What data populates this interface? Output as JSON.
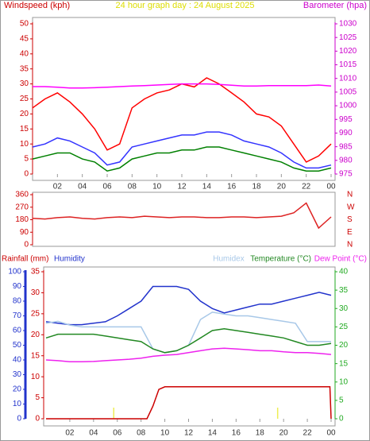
{
  "chart_data": [
    {
      "type": "line",
      "title": "24 hour graph day : 24 August 2025",
      "y_label": "Windspeed (kph)",
      "y2_label": "Barometer (hpa)",
      "x": [
        0,
        1,
        2,
        3,
        4,
        5,
        6,
        7,
        8,
        9,
        10,
        11,
        12,
        13,
        14,
        15,
        16,
        17,
        18,
        19,
        20,
        21,
        22,
        23,
        24
      ],
      "xlim": [
        0,
        24
      ],
      "xticks": [
        {
          "value": 2,
          "label": "02"
        },
        {
          "value": 4,
          "label": "04"
        },
        {
          "value": 6,
          "label": "06"
        },
        {
          "value": 8,
          "label": "08"
        },
        10,
        12,
        14,
        16,
        18,
        20,
        22,
        {
          "value": 24,
          "label": "00"
        }
      ],
      "ylim": [
        0,
        50
      ],
      "yticks": [
        0,
        5,
        10,
        15,
        20,
        25,
        30,
        35,
        40,
        45,
        50
      ],
      "y2lim": [
        975,
        1030
      ],
      "y2ticks": [
        975,
        980,
        985,
        990,
        995,
        1000,
        1005,
        1010,
        1015,
        1020,
        1025,
        1030
      ],
      "series": [
        {
          "color": "#ff0000",
          "values": [
            22,
            25,
            27,
            24,
            20,
            15,
            8,
            10,
            22,
            25,
            27,
            28,
            30,
            29,
            32,
            30,
            27,
            24,
            20,
            19,
            16,
            10,
            4,
            6,
            10
          ]
        },
        {
          "color": "#008000",
          "values": [
            5,
            6,
            7,
            7,
            5,
            4,
            1,
            2,
            5,
            6,
            7,
            7,
            8,
            8,
            9,
            9,
            8,
            7,
            6,
            5,
            4,
            2,
            1,
            1,
            2
          ]
        },
        {
          "color": "#3333ff",
          "values": [
            9,
            10,
            12,
            11,
            9,
            7,
            3,
            4,
            9,
            10,
            11,
            12,
            13,
            13,
            14,
            14,
            13,
            11,
            10,
            9,
            7,
            4,
            2,
            2,
            3
          ]
        },
        {
          "color": "#ff00ff",
          "axis": "y2",
          "values": [
            1007,
            1007,
            1006.8,
            1006.5,
            1006.5,
            1006.6,
            1006.8,
            1007,
            1007.2,
            1007.4,
            1007.6,
            1007.8,
            1008,
            1008,
            1008,
            1007.8,
            1007.5,
            1007.2,
            1007.2,
            1007.4,
            1007.4,
            1007.4,
            1007.4,
            1007.6,
            1007.2
          ]
        }
      ]
    },
    {
      "type": "line",
      "x": [
        0,
        1,
        2,
        3,
        4,
        5,
        6,
        7,
        8,
        9,
        10,
        11,
        12,
        13,
        14,
        15,
        16,
        17,
        18,
        19,
        20,
        21,
        22,
        23,
        24
      ],
      "xlim": [
        0,
        24
      ],
      "ylim": [
        0,
        360
      ],
      "yticks": [
        0,
        90,
        180,
        270,
        360
      ],
      "y2ticks": [
        {
          "value": 0,
          "label": "N"
        },
        {
          "value": 90,
          "label": "E"
        },
        {
          "value": 180,
          "label": "S"
        },
        {
          "value": 270,
          "label": "W"
        },
        {
          "value": 360,
          "label": "N"
        }
      ],
      "series": [
        {
          "color": "#dd2222",
          "values": [
            190,
            185,
            195,
            200,
            190,
            185,
            195,
            200,
            195,
            205,
            200,
            195,
            200,
            200,
            195,
            195,
            200,
            200,
            195,
            200,
            205,
            230,
            300,
            120,
            200
          ]
        }
      ]
    },
    {
      "type": "line",
      "x": [
        0,
        1,
        2,
        3,
        4,
        5,
        6,
        7,
        8,
        9,
        10,
        11,
        12,
        13,
        14,
        15,
        16,
        17,
        18,
        19,
        20,
        21,
        22,
        23,
        24
      ],
      "xlim": [
        0,
        24
      ],
      "xticks": [
        {
          "value": 2,
          "label": "02"
        },
        {
          "value": 4,
          "label": "04"
        },
        {
          "value": 6,
          "label": "06"
        },
        {
          "value": 8,
          "label": "08"
        },
        10,
        12,
        14,
        16,
        18,
        20,
        22,
        {
          "value": 24,
          "label": "00"
        }
      ],
      "ylim": [
        0,
        100
      ],
      "yticks": [
        0,
        10,
        20,
        30,
        40,
        50,
        60,
        70,
        80,
        90,
        100
      ],
      "y2lim": [
        0,
        35
      ],
      "y2ticks": [
        0,
        5,
        10,
        15,
        20,
        25,
        30,
        35
      ],
      "y3lim": [
        0,
        40
      ],
      "y3ticks": [
        0,
        5,
        10,
        15,
        20,
        25,
        30,
        35,
        40
      ],
      "sun_markers": [
        5.7,
        19.5
      ],
      "series": [
        {
          "name": "Rainfall (mm)",
          "color": "#cc0000",
          "axis": "y2",
          "x": [
            0,
            8.5,
            9,
            9.5,
            10,
            23.9,
            24
          ],
          "values": [
            0,
            0,
            3,
            7,
            7.6,
            7.6,
            0
          ]
        },
        {
          "name": "Humidity",
          "color": "#2233cc",
          "values": [
            66,
            65,
            64,
            64,
            65,
            66,
            70,
            75,
            80,
            90,
            90,
            90,
            88,
            80,
            75,
            72,
            74,
            76,
            78,
            78,
            80,
            82,
            84,
            86,
            84
          ]
        },
        {
          "name": "Humidex",
          "color": "#a8c8e8",
          "axis": "y3",
          "values": [
            26,
            26.5,
            25.5,
            25,
            25,
            25,
            25,
            25,
            25,
            19,
            18,
            18.5,
            20,
            27,
            29,
            28.5,
            28,
            28,
            27.5,
            27,
            26.5,
            26,
            21,
            21,
            21
          ]
        },
        {
          "name": "Temperature (°C)",
          "color": "#228822",
          "axis": "y3",
          "values": [
            22,
            23,
            23,
            23,
            23,
            22.5,
            22,
            21.5,
            21,
            19,
            18,
            18.5,
            20,
            22,
            24,
            24.5,
            24,
            23.5,
            23,
            22.5,
            22,
            21,
            20,
            20,
            20.5
          ]
        },
        {
          "name": "Dew Point (°C)",
          "color": "#ee22ee",
          "axis": "y3",
          "values": [
            16,
            15.8,
            15.5,
            15.5,
            15.6,
            15.8,
            16,
            16.2,
            16.5,
            17,
            17.3,
            17.5,
            18,
            18.5,
            19,
            19.2,
            19,
            18.8,
            18.5,
            18.5,
            18.2,
            18,
            18,
            17.8,
            17.5
          ]
        }
      ]
    }
  ]
}
